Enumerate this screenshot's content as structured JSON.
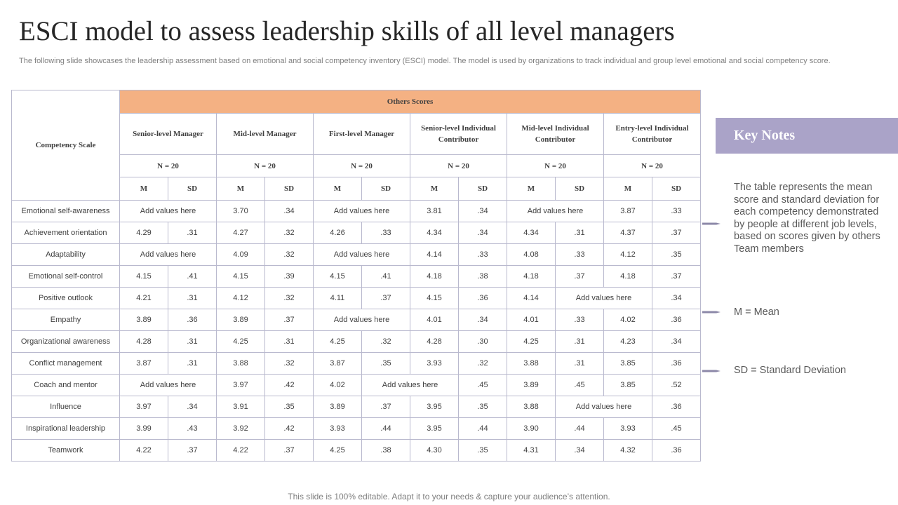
{
  "title": "ESCI model to assess leadership skills of all level managers",
  "subtitle": "The following slide showcases the leadership assessment based on emotional and social competency inventory (ESCI) model. The model is used by organizations to track individual and group level emotional and social competency score.",
  "table": {
    "corner_header": "Competency Scale",
    "group_header": "Others Scores",
    "levels": [
      "Senior-level Manager",
      "Mid-level Manager",
      "First-level Manager",
      "Senior-level Individual Contributor",
      "Mid-level Individual Contributor",
      "Entry-level Individual Contributor"
    ],
    "n_label": "N = 20",
    "m_label": "M",
    "sd_label": "SD",
    "rows": [
      {
        "label": "Emotional  self-awareness",
        "cells": [
          {
            "t": "Add values here",
            "span": 2
          },
          {
            "t": "3.70"
          },
          {
            "t": ".34"
          },
          {
            "t": "Add values here",
            "span": 2
          },
          {
            "t": "3.81"
          },
          {
            "t": ".34"
          },
          {
            "t": "Add values here",
            "span": 2
          },
          {
            "t": "3.87"
          },
          {
            "t": ".33"
          }
        ]
      },
      {
        "label": "Achievement orientation",
        "cells": [
          {
            "t": "4.29"
          },
          {
            "t": ".31"
          },
          {
            "t": "4.27"
          },
          {
            "t": ".32"
          },
          {
            "t": "4.26"
          },
          {
            "t": ".33"
          },
          {
            "t": "4.34"
          },
          {
            "t": ".34"
          },
          {
            "t": "4.34"
          },
          {
            "t": ".31"
          },
          {
            "t": "4.37"
          },
          {
            "t": ".37"
          }
        ]
      },
      {
        "label": "Adaptability",
        "cells": [
          {
            "t": "Add values here",
            "span": 2
          },
          {
            "t": "4.09"
          },
          {
            "t": ".32"
          },
          {
            "t": "Add values here",
            "span": 2
          },
          {
            "t": "4.14"
          },
          {
            "t": ".33"
          },
          {
            "t": "4.08"
          },
          {
            "t": ".33"
          },
          {
            "t": "4.12"
          },
          {
            "t": ".35"
          }
        ]
      },
      {
        "label": "Emotional  self-control",
        "cells": [
          {
            "t": "4.15"
          },
          {
            "t": ".41"
          },
          {
            "t": "4.15"
          },
          {
            "t": ".39"
          },
          {
            "t": "4.15"
          },
          {
            "t": ".41"
          },
          {
            "t": "4.18"
          },
          {
            "t": ".38"
          },
          {
            "t": "4.18"
          },
          {
            "t": ".37"
          },
          {
            "t": "4.18"
          },
          {
            "t": ".37"
          }
        ]
      },
      {
        "label": "Positive outlook",
        "cells": [
          {
            "t": "4.21"
          },
          {
            "t": ".31"
          },
          {
            "t": "4.12"
          },
          {
            "t": ".32"
          },
          {
            "t": "4.11"
          },
          {
            "t": ".37"
          },
          {
            "t": "4.15"
          },
          {
            "t": ".36"
          },
          {
            "t": "4.14"
          },
          {
            "t": "Add values here",
            "span": 2
          },
          {
            "t": ".34"
          }
        ]
      },
      {
        "label": "Empathy",
        "cells": [
          {
            "t": "3.89"
          },
          {
            "t": ".36"
          },
          {
            "t": "3.89"
          },
          {
            "t": ".37"
          },
          {
            "t": "Add values here",
            "span": 2
          },
          {
            "t": "4.01"
          },
          {
            "t": ".34"
          },
          {
            "t": "4.01"
          },
          {
            "t": ".33"
          },
          {
            "t": "4.02"
          },
          {
            "t": ".36"
          }
        ]
      },
      {
        "label": "Organizational awareness",
        "cells": [
          {
            "t": "4.28"
          },
          {
            "t": ".31"
          },
          {
            "t": "4.25"
          },
          {
            "t": ".31"
          },
          {
            "t": "4.25"
          },
          {
            "t": ".32"
          },
          {
            "t": "4.28"
          },
          {
            "t": ".30"
          },
          {
            "t": "4.25"
          },
          {
            "t": ".31"
          },
          {
            "t": "4.23"
          },
          {
            "t": ".34"
          }
        ]
      },
      {
        "label": "Conflict management",
        "cells": [
          {
            "t": "3.87"
          },
          {
            "t": ".31"
          },
          {
            "t": "3.88"
          },
          {
            "t": ".32"
          },
          {
            "t": "3.87"
          },
          {
            "t": ".35"
          },
          {
            "t": "3.93"
          },
          {
            "t": ".32"
          },
          {
            "t": "3.88"
          },
          {
            "t": ".31"
          },
          {
            "t": "3.85"
          },
          {
            "t": ".36"
          }
        ]
      },
      {
        "label": "Coach and mentor",
        "cells": [
          {
            "t": "Add values here",
            "span": 2
          },
          {
            "t": "3.97"
          },
          {
            "t": ".42"
          },
          {
            "t": "4.02"
          },
          {
            "t": "Add values here",
            "span": 2
          },
          {
            "t": ".45"
          },
          {
            "t": "3.89"
          },
          {
            "t": ".45"
          },
          {
            "t": "3.85"
          },
          {
            "t": ".52"
          }
        ]
      },
      {
        "label": "Influence",
        "cells": [
          {
            "t": "3.97"
          },
          {
            "t": ".34"
          },
          {
            "t": "3.91"
          },
          {
            "t": ".35"
          },
          {
            "t": "3.89"
          },
          {
            "t": ".37"
          },
          {
            "t": "3.95"
          },
          {
            "t": ".35"
          },
          {
            "t": "3.88"
          },
          {
            "t": "Add values here",
            "span": 2
          },
          {
            "t": ".36"
          }
        ]
      },
      {
        "label": "Inspirational leadership",
        "cells": [
          {
            "t": "3.99"
          },
          {
            "t": ".43"
          },
          {
            "t": "3.92"
          },
          {
            "t": ".42"
          },
          {
            "t": "3.93"
          },
          {
            "t": ".44"
          },
          {
            "t": "3.95"
          },
          {
            "t": ".44"
          },
          {
            "t": "3.90"
          },
          {
            "t": ".44"
          },
          {
            "t": "3.93"
          },
          {
            "t": ".45"
          }
        ]
      },
      {
        "label": "Teamwork",
        "cells": [
          {
            "t": "4.22"
          },
          {
            "t": ".37"
          },
          {
            "t": "4.22"
          },
          {
            "t": ".37"
          },
          {
            "t": "4.25"
          },
          {
            "t": ".38"
          },
          {
            "t": "4.30"
          },
          {
            "t": ".35"
          },
          {
            "t": "4.31"
          },
          {
            "t": ".34"
          },
          {
            "t": "4.32"
          },
          {
            "t": ".36"
          }
        ]
      }
    ]
  },
  "key_notes": {
    "title": "Key Notes",
    "note1": "The table represents the mean score and standard deviation for each competency demonstrated by people at different job levels, based on scores given by others Team members",
    "note2": "M = Mean",
    "note3": "SD = Standard Deviation"
  },
  "footer": "This slide is 100% editable. Adapt it to your needs & capture your audience’s attention."
}
